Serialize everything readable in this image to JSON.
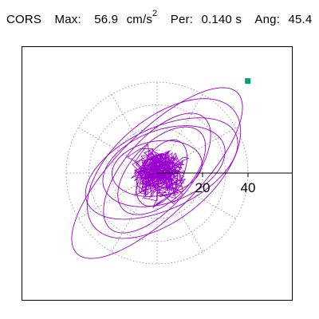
{
  "header": {
    "label": "CORS",
    "max_label": "Max:",
    "max_value": "56.9",
    "max_unit": "cm/s",
    "max_unit_exp": "2",
    "per_label": "Per:",
    "per_value": "0.140 s",
    "ang_label": "Ang:",
    "ang_value": "45.4"
  },
  "chart_data": {
    "type": "scatter",
    "title": "",
    "radial_ticks": [
      "20",
      "40"
    ],
    "radial_rings": [
      10,
      20,
      30,
      40
    ],
    "radial_spokes_deg": [
      0,
      30,
      60,
      90,
      120,
      150,
      180,
      210,
      240,
      270,
      300,
      330
    ],
    "xlim": [
      -60,
      60
    ],
    "ylim": [
      -55,
      55
    ],
    "peak_point": {
      "x": 39.9,
      "y": 40.5
    },
    "trace_loops": [
      {
        "a": 50,
        "b": 18,
        "rot": 45,
        "cx": 0,
        "cy": 0
      },
      {
        "a": 40,
        "b": 22,
        "rot": 40,
        "cx": 3,
        "cy": 2
      },
      {
        "a": 36,
        "b": 18,
        "rot": 25,
        "cx": 2,
        "cy": 2
      },
      {
        "a": 32,
        "b": 15,
        "rot": 50,
        "cx": 0,
        "cy": 0
      },
      {
        "a": 28,
        "b": 16,
        "rot": 20,
        "cx": 3,
        "cy": 3
      },
      {
        "a": 24,
        "b": 13,
        "rot": 45,
        "cx": 2,
        "cy": 1
      },
      {
        "a": 20,
        "b": 12,
        "rot": 10,
        "cx": 0,
        "cy": 2
      },
      {
        "a": 16,
        "b": 9,
        "rot": 60,
        "cx": 2,
        "cy": 0
      }
    ],
    "colors": {
      "trace": "#9900cc",
      "peak_marker": "#009e73",
      "grid": "#888888",
      "axis": "#000000"
    }
  }
}
